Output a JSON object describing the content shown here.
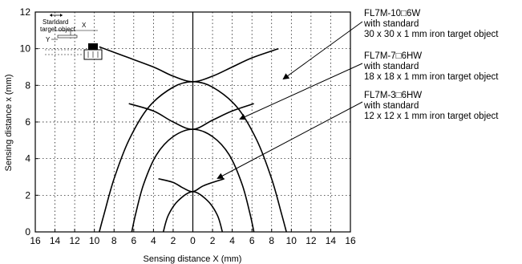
{
  "chart_data": {
    "type": "line",
    "title": "",
    "xlabel": "Sensing distance X (mm)",
    "ylabel": "Sensing distance x (mm)",
    "xlim": [
      -16,
      16
    ],
    "ylim": [
      0,
      12
    ],
    "x_ticks": [
      -16,
      -14,
      -12,
      -10,
      -8,
      -6,
      -4,
      -2,
      0,
      2,
      4,
      6,
      8,
      10,
      12,
      14,
      16
    ],
    "x_tick_labels": [
      "16",
      "14",
      "12",
      "10",
      "8",
      "6",
      "4",
      "2",
      "0",
      "2",
      "4",
      "6",
      "8",
      "10",
      "12",
      "14",
      "16"
    ],
    "y_ticks": [
      0,
      2,
      4,
      6,
      8,
      10,
      12
    ],
    "grid": true,
    "series": [
      {
        "name": "FL7M-10□6W",
        "line1": "FL7M-10□6W",
        "line2": "with standard",
        "line3": "30 x 30 x 1 mm iron target object",
        "top_curve": [
          [
            -9.5,
            10.1
          ],
          [
            -7,
            9.6
          ],
          [
            -4,
            9.0
          ],
          [
            -2,
            8.5
          ],
          [
            0,
            8.2
          ],
          [
            2,
            8.5
          ],
          [
            4,
            9.0
          ],
          [
            6,
            9.5
          ],
          [
            8.7,
            10.0
          ]
        ],
        "outer_curve": [
          [
            -9.5,
            0
          ],
          [
            -9,
            1
          ],
          [
            -8,
            2.9
          ],
          [
            -6.5,
            5.0
          ],
          [
            -4.5,
            6.8
          ],
          [
            -2,
            7.9
          ],
          [
            0,
            8.2
          ],
          [
            2,
            7.9
          ],
          [
            4.5,
            6.8
          ],
          [
            6.5,
            5.0
          ],
          [
            8,
            2.9
          ],
          [
            9,
            1
          ],
          [
            9.5,
            0
          ]
        ]
      },
      {
        "name": "FL7M-7□6HW",
        "line1": "FL7M-7□6HW",
        "line2": "with standard",
        "line3": "18 x 18 x 1 mm iron target object",
        "top_curve": [
          [
            -6.5,
            7.0
          ],
          [
            -4,
            6.6
          ],
          [
            -2,
            6.0
          ],
          [
            0,
            5.6
          ],
          [
            2,
            6.1
          ],
          [
            4,
            6.6
          ],
          [
            6.2,
            7.0
          ]
        ],
        "outer_curve": [
          [
            -6.2,
            0
          ],
          [
            -5.8,
            1
          ],
          [
            -5,
            2.6
          ],
          [
            -3.7,
            4.2
          ],
          [
            -2,
            5.2
          ],
          [
            0,
            5.6
          ],
          [
            2,
            5.2
          ],
          [
            3.7,
            4.2
          ],
          [
            5,
            2.6
          ],
          [
            5.8,
            1
          ],
          [
            6.2,
            0
          ]
        ]
      },
      {
        "name": "FL7M-3□6HW",
        "line1": "FL7M-3□6HW",
        "line2": "with standard",
        "line3": "12 x 12 x 1 mm iron target object",
        "top_curve": [
          [
            -3.5,
            2.9
          ],
          [
            -2,
            2.7
          ],
          [
            -1,
            2.4
          ],
          [
            0,
            2.2
          ],
          [
            1,
            2.5
          ],
          [
            2,
            2.7
          ],
          [
            3.2,
            2.9
          ]
        ],
        "outer_curve": [
          [
            -3,
            0
          ],
          [
            -2.5,
            0.9
          ],
          [
            -1.5,
            1.7
          ],
          [
            0,
            2.2
          ],
          [
            1.5,
            1.7
          ],
          [
            2.5,
            0.9
          ],
          [
            3,
            0
          ]
        ]
      }
    ],
    "legend_position": "right"
  },
  "diagram": {
    "standard_label_1": "Standard",
    "standard_label_2": "target object",
    "x_label": "X",
    "y_label": "Y"
  }
}
